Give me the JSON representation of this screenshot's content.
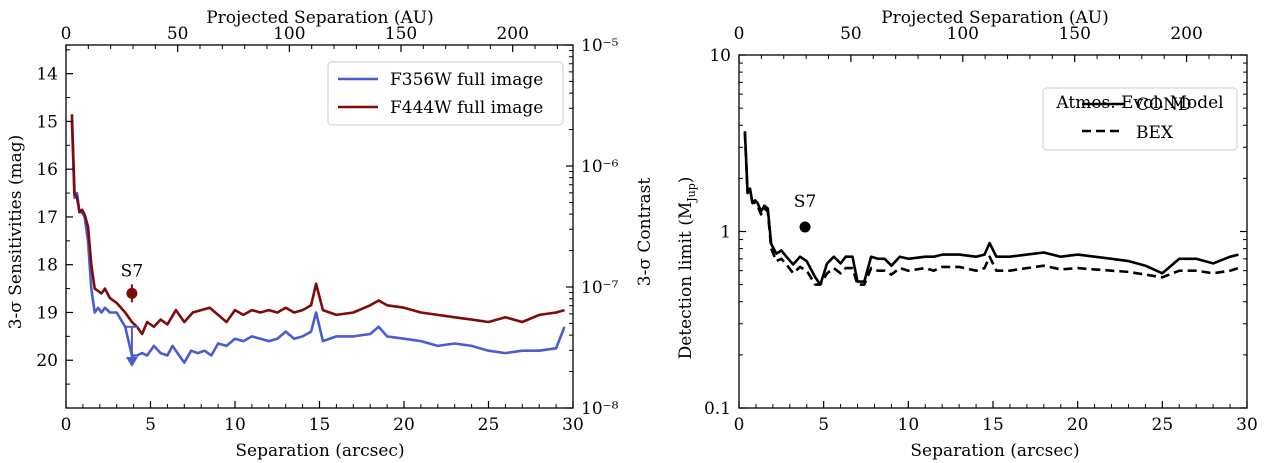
{
  "chart_data": [
    {
      "type": "line",
      "title": "",
      "xlabel": "Separation (arcsec)",
      "top_xlabel": "Projected Separation (AU)",
      "ylabel": "3-σ Sensitivities (mag)",
      "right_ylabel": "3-σ Contrast",
      "xlim": [
        0,
        30
      ],
      "ylim": [
        21,
        13.4
      ],
      "y_inverted": true,
      "top_xlim": [
        0,
        227
      ],
      "right_ylim": [
        1e-08,
        1e-05
      ],
      "right_y_scale": "log",
      "x_ticks": [
        "0",
        "5",
        "10",
        "15",
        "20",
        "25",
        "30"
      ],
      "y_ticks": [
        "14",
        "15",
        "16",
        "17",
        "18",
        "19",
        "20"
      ],
      "top_x_ticks": [
        "0",
        "50",
        "100",
        "150",
        "200"
      ],
      "right_y_ticks": [
        "10⁻⁵",
        "10⁻⁶",
        "10⁻⁷",
        "10⁻⁸"
      ],
      "legend_position": "top-right",
      "series": [
        {
          "name": "F356W full image",
          "color": "#4a5ccf",
          "x": [
            0.35,
            0.5,
            0.65,
            0.8,
            0.95,
            1.1,
            1.3,
            1.5,
            1.7,
            1.9,
            2.1,
            2.3,
            2.6,
            3,
            3.5,
            3.9,
            4.2,
            4.5,
            4.8,
            5.2,
            5.6,
            6,
            6.3,
            6.7,
            7,
            7.4,
            7.8,
            8.2,
            8.6,
            9,
            9.5,
            10,
            10.5,
            11,
            11.5,
            12,
            12.5,
            13,
            13.5,
            14,
            14.5,
            14.8,
            15.2,
            16,
            17,
            18,
            18.5,
            19,
            20,
            21,
            22,
            23,
            24,
            25,
            26,
            27,
            28,
            29,
            29.5
          ],
          "y": [
            15.0,
            16.6,
            16.5,
            16.9,
            16.9,
            17.0,
            17.5,
            18.5,
            19.0,
            18.9,
            19.0,
            18.9,
            19.0,
            19.0,
            19.3,
            19.9,
            19.9,
            19.85,
            19.9,
            19.7,
            19.85,
            19.9,
            19.7,
            19.9,
            20.05,
            19.8,
            19.85,
            19.8,
            19.9,
            19.65,
            19.7,
            19.55,
            19.6,
            19.5,
            19.55,
            19.6,
            19.55,
            19.4,
            19.55,
            19.5,
            19.4,
            19.0,
            19.6,
            19.5,
            19.5,
            19.45,
            19.3,
            19.5,
            19.55,
            19.6,
            19.7,
            19.65,
            19.7,
            19.8,
            19.85,
            19.8,
            19.8,
            19.75,
            19.3
          ]
        },
        {
          "name": "F444W full image",
          "color": "#7e0a0a",
          "x": [
            0.35,
            0.5,
            0.65,
            0.8,
            0.95,
            1.1,
            1.3,
            1.5,
            1.7,
            1.9,
            2.1,
            2.3,
            2.6,
            3,
            3.5,
            3.9,
            4.2,
            4.5,
            4.8,
            5.2,
            5.6,
            6,
            6.5,
            7,
            7.5,
            8,
            8.5,
            9,
            9.5,
            10,
            10.5,
            11,
            11.5,
            12,
            12.5,
            13,
            13.5,
            14,
            14.5,
            14.8,
            15.2,
            16,
            17,
            18,
            18.5,
            19,
            20,
            21,
            22,
            23,
            24,
            25,
            26,
            27,
            28,
            29,
            29.5
          ],
          "y": [
            14.85,
            16.5,
            16.6,
            16.9,
            16.85,
            16.95,
            17.2,
            18.0,
            18.5,
            18.55,
            18.6,
            18.5,
            18.7,
            18.8,
            19.0,
            19.2,
            19.3,
            19.45,
            19.2,
            19.3,
            19.15,
            19.25,
            18.95,
            19.2,
            19.0,
            18.95,
            18.9,
            19.05,
            19.2,
            18.95,
            19.05,
            18.95,
            19.0,
            18.95,
            19.0,
            18.9,
            19.0,
            18.95,
            18.85,
            18.4,
            18.95,
            19.05,
            19.0,
            18.85,
            18.75,
            18.85,
            18.9,
            19.0,
            19.05,
            19.1,
            19.15,
            19.2,
            19.1,
            19.2,
            19.05,
            19.0,
            18.95
          ]
        }
      ],
      "annotations": [
        {
          "text": "S7",
          "x": 3.9,
          "y": 18.6,
          "color": "#7e0a0a"
        },
        {
          "text": "",
          "type": "upper-limit-arrow",
          "x": 3.9,
          "y_from": 19.3,
          "y_to": 20.1,
          "color": "#4a5ccf"
        }
      ]
    },
    {
      "type": "line",
      "title": "",
      "xlabel": "Separation (arcsec)",
      "top_xlabel": "Projected Separation (AU)",
      "ylabel": "Detection limit (M",
      "ylabel_sub": "Jup",
      "ylabel_end": ")",
      "xlim": [
        0,
        30
      ],
      "ylim": [
        0.1,
        10
      ],
      "y_scale": "log",
      "top_xlim": [
        0,
        227
      ],
      "x_ticks": [
        "0",
        "5",
        "10",
        "15",
        "20",
        "25",
        "30"
      ],
      "y_ticks": [
        "10",
        "1",
        "0.1"
      ],
      "top_x_ticks": [
        "0",
        "50",
        "100",
        "150",
        "200"
      ],
      "legend_title": "Atmos. Evol. Model",
      "legend_position": "top-right",
      "series": [
        {
          "name": "COND",
          "dash": "solid",
          "color": "#000000",
          "x": [
            0.35,
            0.5,
            0.65,
            0.8,
            0.95,
            1.1,
            1.3,
            1.5,
            1.7,
            1.9,
            2.2,
            2.5,
            2.8,
            3.2,
            3.6,
            4,
            4.5,
            4.8,
            5.2,
            5.6,
            6,
            6.3,
            6.7,
            7,
            7.4,
            7.8,
            8.2,
            8.6,
            9,
            9.5,
            10,
            11,
            11.5,
            12,
            13,
            14,
            14.5,
            14.8,
            15.2,
            16,
            17,
            18,
            19,
            20,
            21,
            22,
            23,
            24,
            25,
            26,
            27,
            28,
            29,
            29.5
          ],
          "y": [
            3.7,
            1.7,
            1.75,
            1.45,
            1.5,
            1.45,
            1.3,
            1.4,
            1.35,
            0.85,
            0.75,
            0.78,
            0.72,
            0.65,
            0.72,
            0.68,
            0.55,
            0.5,
            0.66,
            0.72,
            0.66,
            0.72,
            0.72,
            0.52,
            0.52,
            0.72,
            0.7,
            0.7,
            0.64,
            0.72,
            0.7,
            0.72,
            0.72,
            0.74,
            0.74,
            0.72,
            0.74,
            0.86,
            0.72,
            0.72,
            0.74,
            0.76,
            0.72,
            0.74,
            0.72,
            0.7,
            0.68,
            0.64,
            0.58,
            0.7,
            0.7,
            0.66,
            0.72,
            0.74
          ]
        },
        {
          "name": "BEX",
          "dash": "dashed",
          "color": "#000000",
          "x": [
            0.35,
            0.5,
            0.65,
            0.8,
            0.95,
            1.1,
            1.3,
            1.5,
            1.7,
            1.9,
            2.2,
            2.5,
            2.8,
            3.2,
            3.6,
            4,
            4.5,
            4.8,
            5.2,
            5.6,
            6,
            6.3,
            6.7,
            7,
            7.4,
            7.8,
            8.2,
            8.6,
            9,
            9.5,
            10,
            11,
            11.5,
            12,
            13,
            14,
            14.5,
            14.8,
            15.2,
            16,
            17,
            18,
            19,
            20,
            21,
            22,
            23,
            24,
            25,
            26,
            27,
            28,
            29,
            29.5
          ],
          "y": [
            3.6,
            1.65,
            1.7,
            1.45,
            1.45,
            1.4,
            1.25,
            1.35,
            1.3,
            0.8,
            0.68,
            0.7,
            0.65,
            0.58,
            0.63,
            0.6,
            0.5,
            0.5,
            0.58,
            0.62,
            0.58,
            0.62,
            0.62,
            0.5,
            0.5,
            0.62,
            0.6,
            0.6,
            0.57,
            0.62,
            0.6,
            0.62,
            0.6,
            0.63,
            0.63,
            0.6,
            0.62,
            0.72,
            0.6,
            0.6,
            0.62,
            0.64,
            0.61,
            0.62,
            0.61,
            0.6,
            0.59,
            0.57,
            0.55,
            0.6,
            0.6,
            0.58,
            0.6,
            0.62
          ]
        }
      ],
      "annotations": [
        {
          "text": "S7",
          "x": 3.9,
          "y": 1.06,
          "color": "#000000"
        }
      ]
    }
  ]
}
